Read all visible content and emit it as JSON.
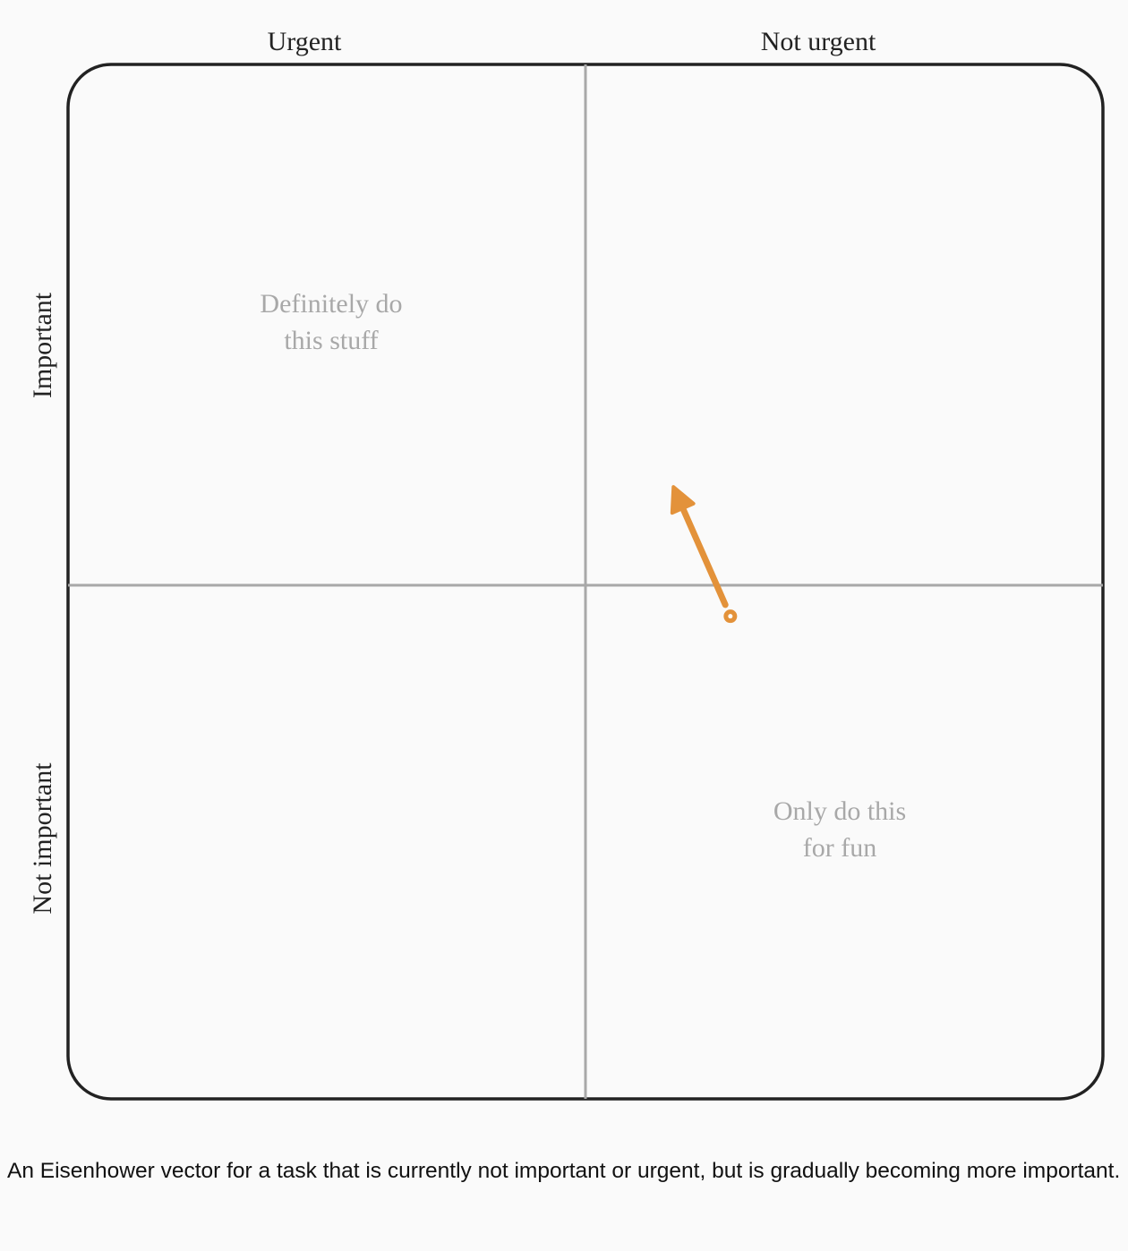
{
  "diagram": {
    "column_labels": [
      "Urgent",
      "Not urgent"
    ],
    "row_labels": [
      "Important",
      "Not important"
    ],
    "quadrant_labels": {
      "urgent_important": [
        "Definitely do",
        "this stuff"
      ],
      "not_urgent_not_important": [
        "Only do this",
        "for fun"
      ]
    },
    "vector": {
      "start": {
        "urgency": -0.28,
        "importance": -0.06
      },
      "end": {
        "urgency": -0.17,
        "importance": 0.19
      },
      "color": "#e3923a"
    },
    "axis_range": [
      -1,
      1
    ]
  },
  "caption": "An Eisenhower vector for a task that is currently not important or urgent, but is gradually becoming more important."
}
